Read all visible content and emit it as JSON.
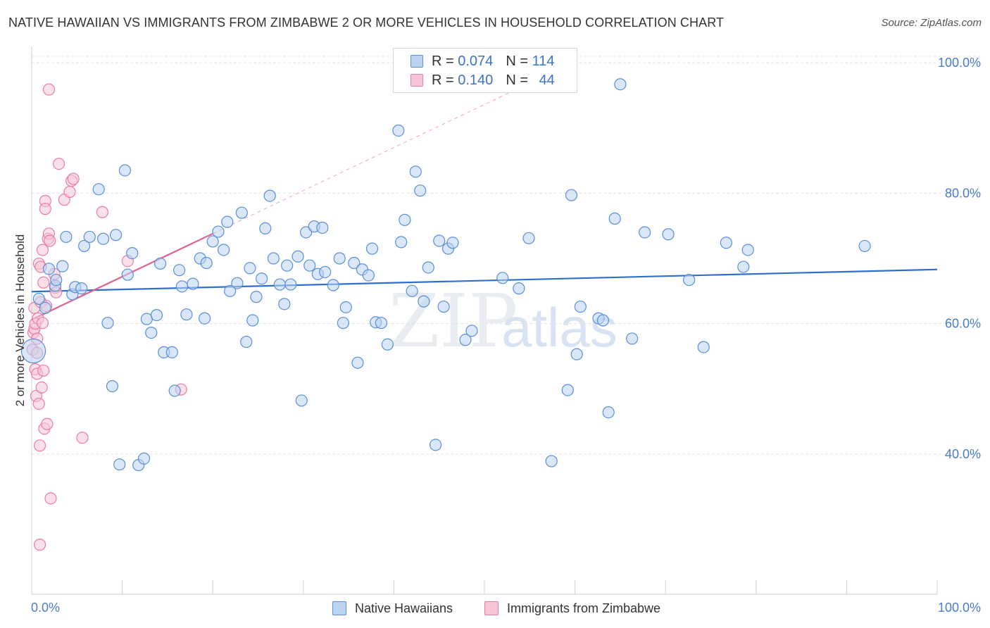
{
  "title": "NATIVE HAWAIIAN VS IMMIGRANTS FROM ZIMBABWE 2 OR MORE VEHICLES IN HOUSEHOLD CORRELATION CHART",
  "source": "Source: ZipAtlas.com",
  "watermark": {
    "zip": "ZIP",
    "atlas": "atlas"
  },
  "legend": {
    "rows": [
      {
        "r_label": "R = ",
        "r_value": "0.074",
        "n_label": "N = ",
        "n_value": "114"
      },
      {
        "r_label": "R = ",
        "r_value": "0.140",
        "n_label": "N = ",
        "n_value": "44"
      }
    ]
  },
  "chart_data": {
    "type": "scatter",
    "title": "NATIVE HAWAIIAN VS IMMIGRANTS FROM ZIMBABWE 2 OR MORE VEHICLES IN HOUSEHOLD CORRELATION CHART",
    "xlabel": "",
    "ylabel": "2 or more Vehicles in Household",
    "xlim": [
      0,
      100
    ],
    "ylim": [
      18.5,
      102.5
    ],
    "x_tick_labels": [
      "0.0%",
      "100.0%"
    ],
    "y_ticks": [
      40,
      60,
      80,
      100
    ],
    "y_tick_labels": [
      "40.0%",
      "60.0%",
      "80.0%",
      "100.0%"
    ],
    "colors": {
      "blue": "#5b8fd8",
      "blue_fill": "#bcd3f2",
      "blue_line": "#2f6fcd",
      "pink": "#e87fa3",
      "pink_fill": "#f7c6d6",
      "pink_line": "#e0628e"
    },
    "series": [
      {
        "name": "Native Hawaiians",
        "r": 0.074,
        "n": 114,
        "trend": {
          "x": [
            0,
            100
          ],
          "y": [
            64.9,
            68.3
          ]
        },
        "points": [
          [
            0.8,
            63.8
          ],
          [
            1.5,
            62.4
          ],
          [
            1.9,
            68.4
          ],
          [
            2.6,
            65.8
          ],
          [
            2.7,
            66.7
          ],
          [
            3.4,
            68.8
          ],
          [
            3.8,
            73.3
          ],
          [
            4.5,
            64.5
          ],
          [
            4.8,
            65.6
          ],
          [
            5.5,
            65.4
          ],
          [
            5.8,
            71.9
          ],
          [
            6.4,
            73.3
          ],
          [
            7.4,
            80.6
          ],
          [
            7.9,
            73.0
          ],
          [
            8.4,
            60.1
          ],
          [
            8.9,
            50.4
          ],
          [
            9.3,
            73.6
          ],
          [
            9.7,
            38.4
          ],
          [
            10.3,
            83.5
          ],
          [
            10.6,
            67.5
          ],
          [
            11.1,
            70.8
          ],
          [
            11.8,
            38.3
          ],
          [
            12.4,
            39.3
          ],
          [
            12.7,
            60.7
          ],
          [
            13.2,
            58.6
          ],
          [
            13.8,
            61.3
          ],
          [
            14.2,
            69.2
          ],
          [
            14.6,
            55.6
          ],
          [
            15.5,
            55.6
          ],
          [
            15.8,
            49.7
          ],
          [
            16.3,
            68.2
          ],
          [
            16.6,
            65.7
          ],
          [
            17.1,
            61.4
          ],
          [
            17.8,
            66.1
          ],
          [
            18.6,
            70.0
          ],
          [
            19.1,
            60.8
          ],
          [
            19.3,
            69.3
          ],
          [
            20.0,
            72.6
          ],
          [
            20.6,
            74.1
          ],
          [
            21.2,
            71.3
          ],
          [
            21.6,
            75.6
          ],
          [
            21.9,
            65.0
          ],
          [
            22.7,
            66.2
          ],
          [
            23.2,
            77.0
          ],
          [
            23.7,
            57.2
          ],
          [
            24.1,
            68.5
          ],
          [
            24.4,
            60.5
          ],
          [
            24.8,
            64.1
          ],
          [
            25.4,
            66.9
          ],
          [
            25.8,
            74.6
          ],
          [
            26.3,
            79.6
          ],
          [
            26.7,
            70.0
          ],
          [
            27.4,
            66.0
          ],
          [
            27.9,
            63.0
          ],
          [
            28.2,
            68.9
          ],
          [
            28.6,
            66.0
          ],
          [
            29.4,
            70.3
          ],
          [
            29.8,
            48.2
          ],
          [
            30.3,
            74.0
          ],
          [
            30.7,
            68.9
          ],
          [
            31.2,
            74.9
          ],
          [
            31.6,
            67.6
          ],
          [
            32.1,
            74.7
          ],
          [
            32.4,
            67.9
          ],
          [
            33.3,
            65.9
          ],
          [
            34.0,
            70.0
          ],
          [
            34.4,
            60.1
          ],
          [
            34.7,
            62.5
          ],
          [
            35.6,
            69.3
          ],
          [
            36.0,
            54.0
          ],
          [
            36.5,
            68.3
          ],
          [
            37.2,
            67.4
          ],
          [
            37.6,
            71.5
          ],
          [
            38.0,
            60.2
          ],
          [
            38.6,
            60.1
          ],
          [
            39.3,
            56.8
          ],
          [
            40.5,
            89.6
          ],
          [
            40.8,
            72.5
          ],
          [
            41.2,
            75.9
          ],
          [
            42.0,
            65.0
          ],
          [
            42.4,
            83.3
          ],
          [
            42.9,
            80.4
          ],
          [
            43.3,
            63.4
          ],
          [
            43.8,
            68.6
          ],
          [
            44.6,
            41.4
          ],
          [
            45.0,
            72.7
          ],
          [
            45.5,
            62.6
          ],
          [
            46.0,
            71.5
          ],
          [
            46.5,
            72.4
          ],
          [
            47.9,
            57.5
          ],
          [
            48.6,
            58.9
          ],
          [
            52.0,
            67.0
          ],
          [
            53.8,
            65.4
          ],
          [
            54.9,
            73.1
          ],
          [
            57.4,
            38.9
          ],
          [
            59.2,
            49.8
          ],
          [
            59.6,
            79.7
          ],
          [
            60.2,
            55.3
          ],
          [
            60.6,
            62.6
          ],
          [
            62.6,
            60.8
          ],
          [
            63.1,
            60.5
          ],
          [
            63.7,
            46.4
          ],
          [
            64.4,
            76.1
          ],
          [
            65.0,
            96.7
          ],
          [
            66.3,
            57.7
          ],
          [
            67.7,
            74.0
          ],
          [
            70.3,
            73.7
          ],
          [
            72.6,
            66.7
          ],
          [
            74.2,
            56.4
          ],
          [
            76.7,
            72.4
          ],
          [
            78.6,
            68.7
          ],
          [
            79.1,
            71.3
          ],
          [
            92.0,
            71.9
          ],
          [
            0.2,
            55.8
          ]
        ]
      },
      {
        "name": "Immigrants from Zimbabwe",
        "r": 0.14,
        "n": 44,
        "trend": {
          "x": [
            0,
            20
          ],
          "y": [
            60.6,
            73.8
          ]
        },
        "trend_extended": {
          "x": [
            20,
            55
          ],
          "y": [
            73.8,
            96.9
          ]
        },
        "points": [
          [
            0.1,
            56.0
          ],
          [
            0.2,
            58.6
          ],
          [
            0.3,
            62.4
          ],
          [
            0.3,
            59.2
          ],
          [
            0.4,
            60.0
          ],
          [
            0.4,
            53.0
          ],
          [
            0.5,
            48.9
          ],
          [
            0.6,
            52.3
          ],
          [
            0.6,
            55.5
          ],
          [
            0.7,
            60.8
          ],
          [
            0.8,
            69.2
          ],
          [
            0.8,
            47.7
          ],
          [
            0.9,
            41.3
          ],
          [
            0.9,
            26.1
          ],
          [
            1.0,
            68.7
          ],
          [
            1.0,
            63.3
          ],
          [
            1.1,
            50.2
          ],
          [
            1.2,
            60.1
          ],
          [
            1.2,
            71.3
          ],
          [
            1.3,
            52.8
          ],
          [
            1.3,
            66.3
          ],
          [
            1.4,
            43.9
          ],
          [
            1.5,
            78.8
          ],
          [
            1.5,
            77.6
          ],
          [
            1.6,
            62.7
          ],
          [
            1.7,
            44.6
          ],
          [
            1.8,
            73.0
          ],
          [
            1.9,
            73.8
          ],
          [
            1.9,
            95.9
          ],
          [
            2.0,
            72.7
          ],
          [
            2.1,
            33.2
          ],
          [
            2.5,
            67.6
          ],
          [
            2.6,
            65.5
          ],
          [
            2.7,
            64.8
          ],
          [
            3.0,
            84.5
          ],
          [
            3.6,
            79.0
          ],
          [
            4.2,
            80.2
          ],
          [
            4.4,
            81.9
          ],
          [
            4.6,
            82.2
          ],
          [
            5.6,
            42.5
          ],
          [
            7.8,
            77.1
          ],
          [
            10.6,
            69.6
          ],
          [
            16.5,
            49.9
          ],
          [
            0.6,
            57.7
          ]
        ]
      }
    ]
  },
  "bottom_legend": [
    {
      "label": "Native Hawaiians"
    },
    {
      "label": "Immigrants from Zimbabwe"
    }
  ]
}
